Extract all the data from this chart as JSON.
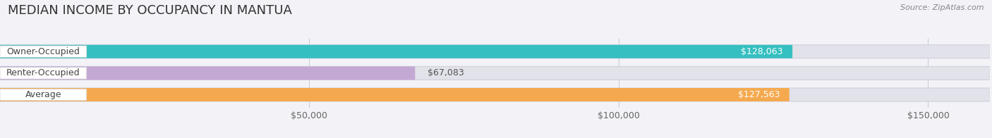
{
  "title": "MEDIAN INCOME BY OCCUPANCY IN MANTUA",
  "source": "Source: ZipAtlas.com",
  "categories": [
    "Owner-Occupied",
    "Renter-Occupied",
    "Average"
  ],
  "values": [
    128063,
    67083,
    127563
  ],
  "bar_colors": [
    "#35bfc0",
    "#c4a8d4",
    "#f5a94e"
  ],
  "bar_labels": [
    "$128,063",
    "$67,083",
    "$127,563"
  ],
  "xlim": [
    0,
    160000
  ],
  "xticks": [
    50000,
    100000,
    150000
  ],
  "xticklabels": [
    "$50,000",
    "$100,000",
    "$150,000"
  ],
  "background_color": "#f2f2f7",
  "bar_background_color": "#e2e2ea",
  "title_fontsize": 13,
  "label_fontsize": 9,
  "value_fontsize": 9,
  "bar_height": 0.62,
  "figsize": [
    14.06,
    1.96
  ]
}
